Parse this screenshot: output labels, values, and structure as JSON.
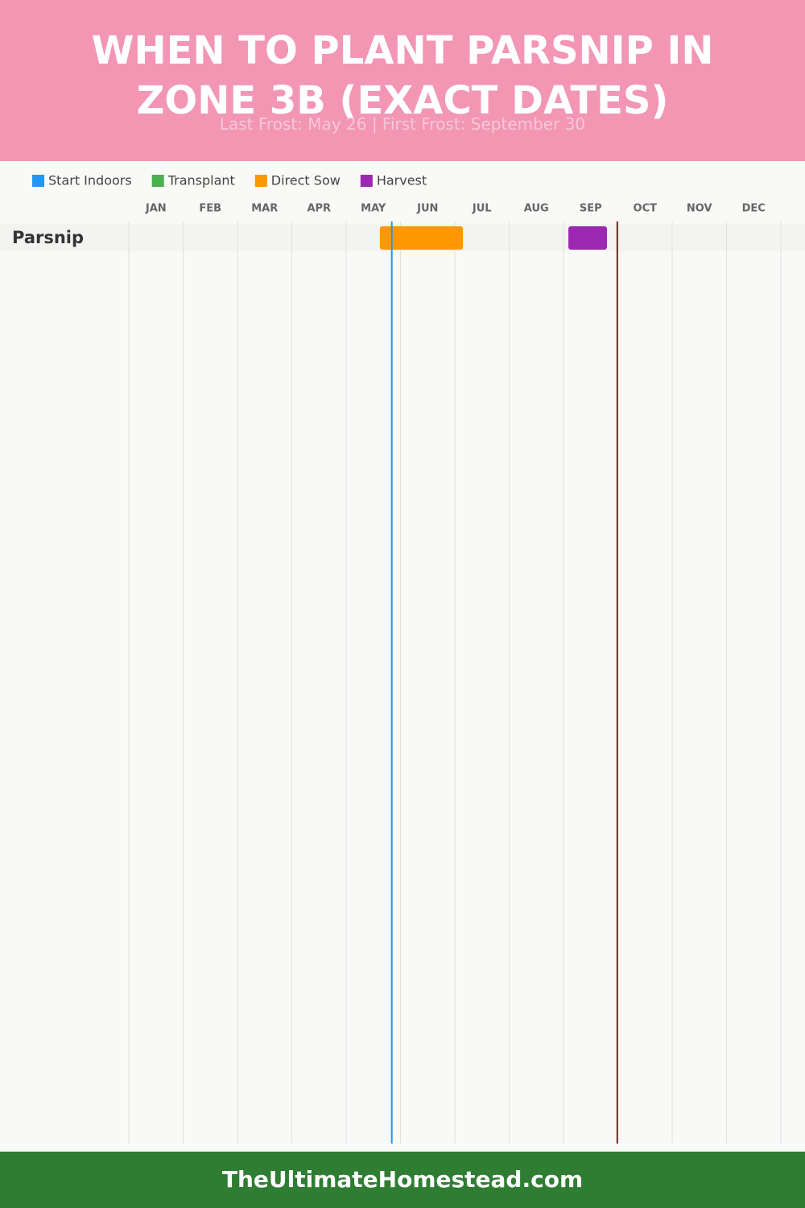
{
  "chart_data": {
    "type": "timeline",
    "title": "WHEN TO PLANT PARSNIP IN ZONE 3B (EXACT DATES)",
    "subtitle": "Last Frost: May 26 | First Frost: September 30",
    "categories": [
      "JAN",
      "FEB",
      "MAR",
      "APR",
      "MAY",
      "JUN",
      "JUL",
      "AUG",
      "SEP",
      "OCT",
      "NOV",
      "DEC"
    ],
    "xlim": [
      0,
      12
    ],
    "rows": [
      "Parsnip"
    ],
    "series": [
      {
        "name": "Start Indoors",
        "color": "#2196f3",
        "ranges": []
      },
      {
        "name": "Transplant",
        "color": "#4caf50",
        "ranges": []
      },
      {
        "name": "Direct Sow",
        "color": "#ff9800",
        "ranges": [
          [
            4.62,
            6.15
          ]
        ]
      },
      {
        "name": "Harvest",
        "color": "#9c27b0",
        "ranges": [
          [
            8.09,
            8.8
          ]
        ]
      }
    ],
    "markers": [
      {
        "value": 4.84,
        "color": "#2196f3"
      },
      {
        "value": 8.99,
        "color": "#8b1a1a"
      }
    ],
    "footer": "TheUltimateHomestead.com"
  }
}
